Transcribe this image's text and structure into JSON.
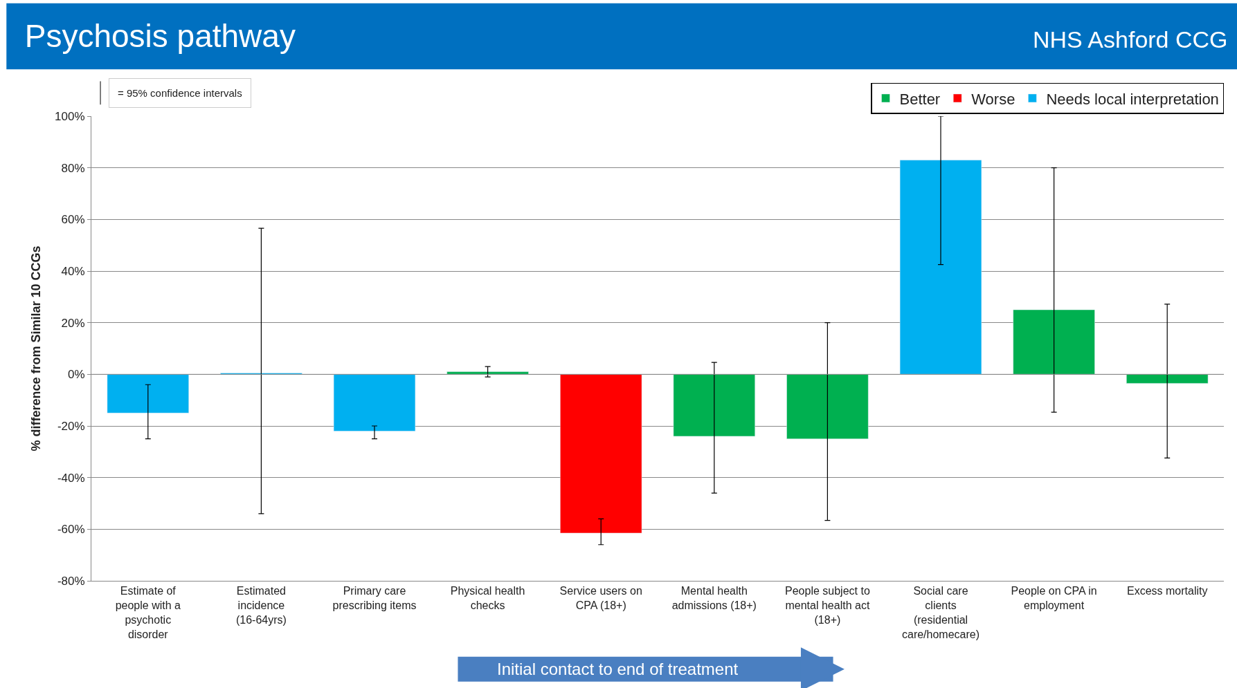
{
  "chart_data": {
    "type": "bar",
    "title": "Psychosis pathway",
    "subtitle": "NHS Ashford CCG",
    "ylabel": "% difference from Similar 10 CCGs",
    "categories": [
      "Estimate of people with a psychotic disorder",
      "Estimated incidence (16-64yrs)",
      "Primary care prescribing items",
      "Physical health checks",
      "Service users on CPA (18+)",
      "Mental health admissions (18+)",
      "People subject to mental health act (18+)",
      "Social care clients (residential care/homecare)",
      "People on CPA in employment",
      "Excess mortality"
    ],
    "series": [
      {
        "name": "Better",
        "color": "#00b050",
        "values": [
          null,
          null,
          null,
          1,
          null,
          -24,
          -25,
          null,
          25,
          -3.5
        ],
        "errors": [
          null,
          null,
          null,
          [
            -1,
            3
          ],
          null,
          [
            -46,
            4.6
          ],
          [
            -56.6,
            20
          ],
          null,
          [
            -14.7,
            80
          ],
          [
            -32.4,
            27.2
          ]
        ]
      },
      {
        "name": "Worse",
        "color": "#ff0000",
        "values": [
          null,
          null,
          null,
          null,
          -61.5,
          null,
          null,
          null,
          null,
          null
        ],
        "errors": [
          null,
          null,
          null,
          null,
          [
            -66,
            -56
          ],
          null,
          null,
          null,
          null,
          null
        ]
      },
      {
        "name": "Needs local interpretation",
        "color": "#00b0f0",
        "values": [
          -15,
          0.5,
          -22,
          null,
          null,
          null,
          null,
          83,
          null,
          null
        ],
        "errors": [
          [
            -25,
            -4
          ],
          [
            -54,
            56.6
          ],
          [
            -25,
            -20
          ],
          null,
          null,
          null,
          null,
          [
            42.5,
            100
          ],
          null,
          null
        ]
      }
    ],
    "ylim": [
      -80,
      100
    ],
    "yticks": [
      {
        "value": -80,
        "label": "-80%"
      },
      {
        "value": -60,
        "label": "-60%"
      },
      {
        "value": -40,
        "label": "-40%"
      },
      {
        "value": -20,
        "label": "-20%"
      },
      {
        "value": 0,
        "label": "0%"
      },
      {
        "value": 20,
        "label": "20%"
      },
      {
        "value": 40,
        "label": "40%"
      },
      {
        "value": 60,
        "label": "60%"
      },
      {
        "value": 80,
        "label": "80%"
      },
      {
        "value": 100,
        "label": "100%"
      }
    ],
    "grid": "y",
    "legend": "top right",
    "annotations": [
      "= 95% confidence intervals",
      "Initial contact to end of treatment"
    ]
  }
}
